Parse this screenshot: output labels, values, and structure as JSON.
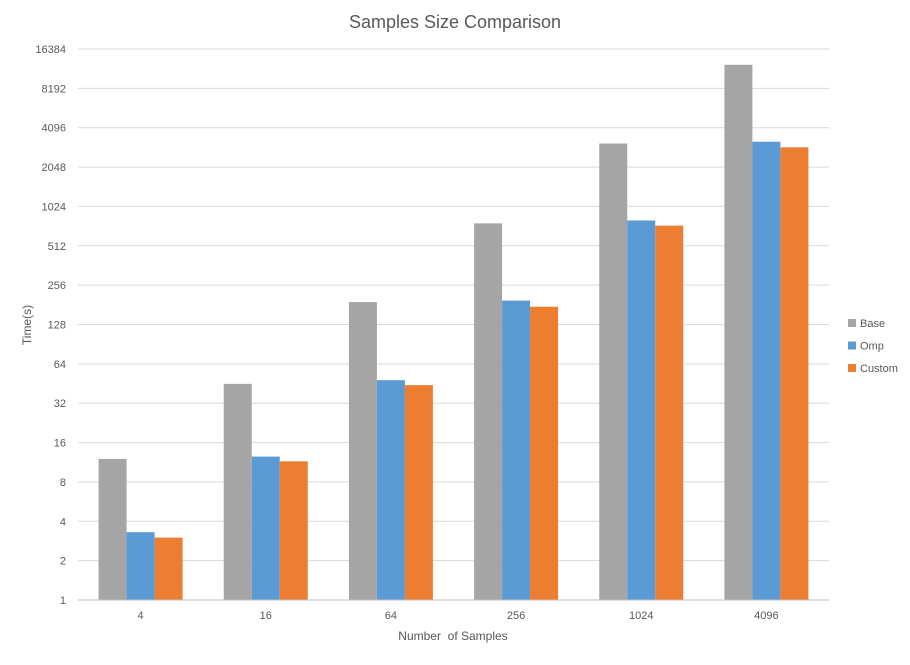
{
  "chart_data": {
    "type": "bar",
    "title": "Samples Size Comparison",
    "xlabel": "Number  of Samples",
    "ylabel": "Time(s)",
    "categories": [
      "4",
      "16",
      "64",
      "256",
      "1024",
      "4096"
    ],
    "y_scale": "log2",
    "ylim": [
      1,
      16384
    ],
    "y_ticks": [
      "1",
      "2",
      "4",
      "8",
      "16",
      "32",
      "64",
      "128",
      "256",
      "512",
      "1024",
      "2048",
      "4096",
      "8192",
      "16384"
    ],
    "grid": true,
    "legend_position": "right",
    "series": [
      {
        "name": "Base",
        "color": "#a5a5a5",
        "values": [
          12,
          45,
          190,
          760,
          3100,
          12400
        ]
      },
      {
        "name": "Omp",
        "color": "#5b9bd5",
        "values": [
          3.3,
          12.5,
          48,
          195,
          800,
          3200
        ]
      },
      {
        "name": "Custom",
        "color": "#ed7d31",
        "values": [
          3.0,
          11.5,
          44,
          175,
          730,
          2900
        ]
      }
    ]
  }
}
